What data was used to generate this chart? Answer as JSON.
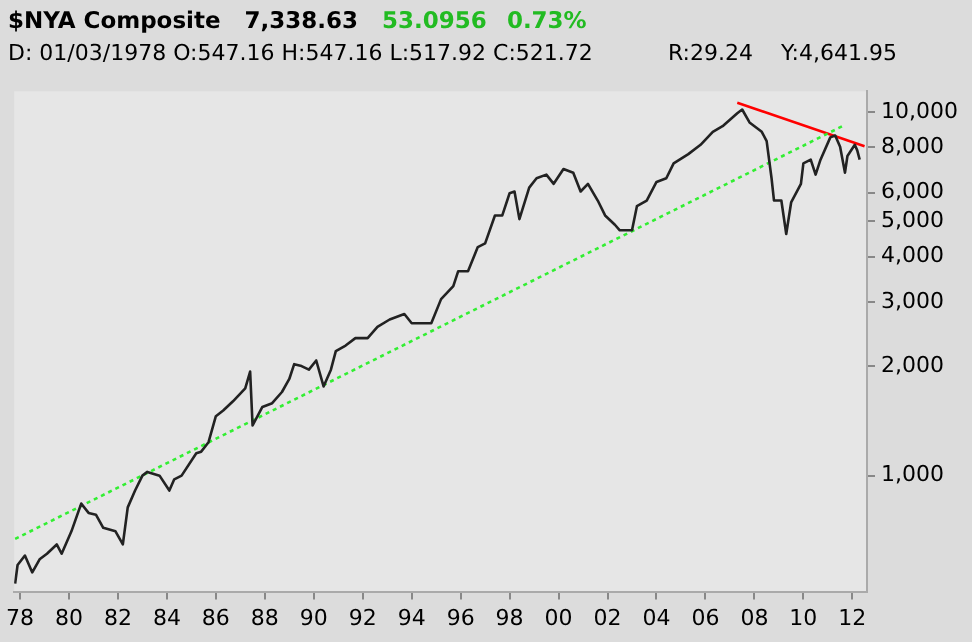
{
  "chart_data": {
    "type": "line",
    "title": "$NYA Composite",
    "subtitle": "D: 01/03/1978 O:547.16 H:547.16 L:517.92 C:521.72",
    "annotations": [
      "7,338.63",
      "53.0956",
      "0.73%",
      "R:29.24",
      "Y:4,641.95"
    ],
    "log": true,
    "grid": false,
    "legend": false,
    "marker": "none",
    "xlim": [
      1977.76,
      2012.6
    ],
    "xticks": [
      {
        "value": 1978,
        "label": "78"
      },
      {
        "value": 1980,
        "label": "80"
      },
      {
        "value": 1982,
        "label": "82"
      },
      {
        "value": 1984,
        "label": "84"
      },
      {
        "value": 1986,
        "label": "86"
      },
      {
        "value": 1988,
        "label": "88"
      },
      {
        "value": 1990,
        "label": "90"
      },
      {
        "value": 1992,
        "label": "92"
      },
      {
        "value": 1994,
        "label": "94"
      },
      {
        "value": 1996,
        "label": "96"
      },
      {
        "value": 1998,
        "label": "98"
      },
      {
        "value": 2000,
        "label": "00"
      },
      {
        "value": 2002,
        "label": "02"
      },
      {
        "value": 2004,
        "label": "04"
      },
      {
        "value": 2006,
        "label": "06"
      },
      {
        "value": 2008,
        "label": "08"
      },
      {
        "value": 2010,
        "label": "10"
      },
      {
        "value": 2012,
        "label": "12"
      }
    ],
    "ylim": [
      480,
      11400
    ],
    "yticks": [
      {
        "value": 1000,
        "label": "1,000"
      },
      {
        "value": 2000,
        "label": "2,000"
      },
      {
        "value": 3000,
        "label": "3,000"
      },
      {
        "value": 4000,
        "label": "4,000"
      },
      {
        "value": 5000,
        "label": "5,000"
      },
      {
        "value": 6000,
        "label": "6,000"
      },
      {
        "value": 8000,
        "label": "8,000"
      },
      {
        "value": 10000,
        "label": "10,000"
      }
    ],
    "series": [
      {
        "color": "#222222",
        "line_style": "solid",
        "x": [
          1977.8,
          1977.9,
          1978.2,
          1978.5,
          1978.8,
          1979.1,
          1979.5,
          1979.7,
          1980.1,
          1980.5,
          1980.8,
          1981.1,
          1981.4,
          1981.9,
          1982.2,
          1982.4,
          1982.7,
          1983.0,
          1983.2,
          1983.7,
          1984.1,
          1984.3,
          1984.6,
          1985.2,
          1985.4,
          1985.7,
          1986.0,
          1986.3,
          1986.7,
          1987.2,
          1987.4,
          1987.5,
          1987.9,
          1988.3,
          1988.7,
          1989.0,
          1989.2,
          1989.5,
          1989.8,
          1990.1,
          1990.4,
          1990.7,
          1990.9,
          1991.3,
          1991.7,
          1992.2,
          1992.6,
          1993.1,
          1993.7,
          1994.0,
          1994.5,
          1994.8,
          1995.2,
          1995.7,
          1995.9,
          1996.3,
          1996.7,
          1997.0,
          1997.4,
          1997.7,
          1998.0,
          1998.2,
          1998.4,
          1998.8,
          1999.1,
          1999.5,
          1999.8,
          2000.2,
          2000.6,
          2000.9,
          2001.2,
          2001.6,
          2001.9,
          2002.3,
          2002.5,
          2003.0,
          2003.2,
          2003.6,
          2004.0,
          2004.4,
          2004.7,
          2005.3,
          2005.8,
          2006.3,
          2006.7,
          2007.3,
          2007.5,
          2007.8,
          2008.3,
          2008.5,
          2008.7,
          2008.8,
          2009.1,
          2009.3,
          2009.5,
          2009.9,
          2010.0,
          2010.3,
          2010.5,
          2010.7,
          2011.1,
          2011.3,
          2011.5,
          2011.7,
          2011.8,
          2012.1,
          2012.2,
          2012.3
        ],
        "values": [
          505,
          568,
          603,
          542,
          589,
          610,
          647,
          610,
          703,
          838,
          790,
          781,
          719,
          703,
          647,
          818,
          910,
          1000,
          1024,
          1000,
          910,
          977,
          1000,
          1152,
          1164,
          1236,
          1457,
          1510,
          1601,
          1738,
          1932,
          1374,
          1545,
          1582,
          1698,
          1844,
          2025,
          2001,
          1956,
          2073,
          1759,
          1956,
          2199,
          2279,
          2388,
          2388,
          2563,
          2687,
          2782,
          2624,
          2624,
          2624,
          3057,
          3320,
          3648,
          3648,
          4250,
          4351,
          5192,
          5192,
          5979,
          6041,
          5072,
          6194,
          6570,
          6724,
          6342,
          6967,
          6806,
          6041,
          6342,
          5706,
          5192,
          4895,
          4726,
          4726,
          5507,
          5706,
          6418,
          6570,
          7219,
          7656,
          8121,
          8816,
          9134,
          9918,
          10153,
          9352,
          8816,
          8313,
          6570,
          5706,
          5706,
          4616,
          5638,
          6342,
          7219,
          7391,
          6724,
          7391,
          8511,
          8610,
          8025,
          6806,
          7567,
          8121,
          7838,
          7391
        ]
      },
      {
        "type": "line",
        "color": "#33ee33",
        "line_style": "dotted",
        "x": [
          1977.8,
          2011.6
        ],
        "values": [
          670,
          9140
        ]
      },
      {
        "type": "line",
        "color": "#ff0000",
        "line_style": "solid",
        "x": [
          2007.3,
          2012.5
        ],
        "values": [
          10600,
          8050
        ]
      }
    ]
  }
}
